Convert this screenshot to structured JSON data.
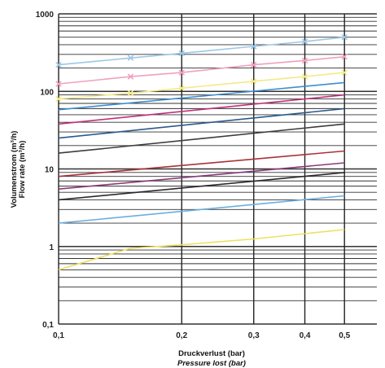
{
  "chart_data": {
    "type": "line",
    "xscale": "log",
    "yscale": "log",
    "xlim": [
      0.1,
      0.6
    ],
    "ylim": [
      0.1,
      1000
    ],
    "grid": true,
    "xlabel": "Druckverlust (bar)",
    "xlabel_en": "Pressure lost (bar)",
    "ylabel": "Volumenstrom (m³/h)",
    "ylabel_en": "Flow rate (m³/h)",
    "x_ticks": [
      {
        "value": 0.1,
        "label": "0,1"
      },
      {
        "value": 0.2,
        "label": "0,2"
      },
      {
        "value": 0.3,
        "label": "0,3"
      },
      {
        "value": 0.4,
        "label": "0,4"
      },
      {
        "value": 0.5,
        "label": "0,5"
      }
    ],
    "y_ticks": [
      {
        "value": 0.1,
        "label": "0,1"
      },
      {
        "value": 1,
        "label": "1"
      },
      {
        "value": 10,
        "label": "10"
      },
      {
        "value": 100,
        "label": "100"
      },
      {
        "value": 1000,
        "label": "1000"
      }
    ],
    "series": [
      {
        "color": "#9cc8e6",
        "marker": "x",
        "x": [
          0.1,
          0.15,
          0.2,
          0.3,
          0.4,
          0.5
        ],
        "y": [
          220,
          270,
          310,
          380,
          440,
          500
        ]
      },
      {
        "color": "#f0a0c0",
        "marker": "x",
        "x": [
          0.1,
          0.15,
          0.2,
          0.3,
          0.4,
          0.5
        ],
        "y": [
          125,
          155,
          175,
          220,
          250,
          280
        ]
      },
      {
        "color": "#f2ea8a",
        "marker": "x",
        "x": [
          0.1,
          0.15,
          0.2,
          0.3,
          0.4,
          0.5
        ],
        "y": [
          80,
          95,
          110,
          135,
          155,
          175
        ]
      },
      {
        "color": "#3a8fd0",
        "x": [
          0.1,
          0.5
        ],
        "y": [
          58,
          130
        ]
      },
      {
        "color": "#c0307a",
        "x": [
          0.1,
          0.5
        ],
        "y": [
          38,
          90
        ]
      },
      {
        "color": "#2a5a8c",
        "x": [
          0.1,
          0.5
        ],
        "y": [
          25,
          60
        ]
      },
      {
        "color": "#3c3c3c",
        "x": [
          0.1,
          0.5
        ],
        "y": [
          16,
          38
        ]
      },
      {
        "color": "#a83238",
        "x": [
          0.1,
          0.5
        ],
        "y": [
          8,
          17
        ]
      },
      {
        "color": "#8a3a7a",
        "x": [
          0.1,
          0.5
        ],
        "y": [
          5.5,
          12
        ]
      },
      {
        "color": "#2a2a2a",
        "x": [
          0.1,
          0.5
        ],
        "y": [
          4,
          9
        ]
      },
      {
        "color": "#6aaee0",
        "x": [
          0.1,
          0.5
        ],
        "y": [
          2,
          4.5
        ]
      },
      {
        "color": "#eee060",
        "x": [
          0.1,
          0.15,
          0.2,
          0.3,
          0.5
        ],
        "y": [
          0.5,
          0.95,
          1.05,
          1.25,
          1.65
        ]
      }
    ]
  }
}
